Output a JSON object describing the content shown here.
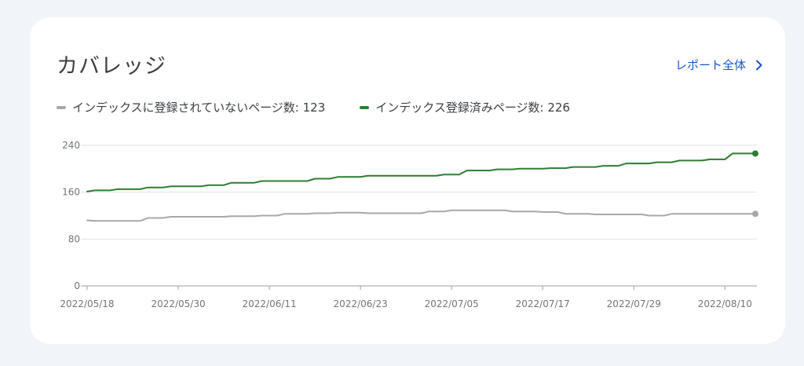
{
  "card": {
    "title": "カバレッジ",
    "report_link_label": "レポート全体"
  },
  "legend": [
    {
      "label": "インデックスに登録されていないページ数: 123",
      "color": "#a8a8a8"
    },
    {
      "label": "インデックス登録済みページ数: 226",
      "color": "#2e7d32"
    }
  ],
  "icons": {
    "report_link": "chevron-right-icon"
  },
  "chart_data": {
    "type": "line",
    "x_start": "2022/05/18",
    "x_end": "2022/08/14",
    "x_tick_labels": [
      "2022/05/18",
      "2022/05/30",
      "2022/06/11",
      "2022/06/23",
      "2022/07/05",
      "2022/07/17",
      "2022/07/29",
      "2022/08/10"
    ],
    "y_tick_labels": [
      "0",
      "80",
      "160",
      "240"
    ],
    "ylim": [
      0,
      240
    ],
    "grid": true,
    "legend_position": "top-left",
    "series": [
      {
        "name": "インデックス登録済みページ数",
        "color": "#2e7d32",
        "points": [
          [
            "2022/05/18",
            161
          ],
          [
            "2022/05/19",
            163
          ],
          [
            "2022/05/21",
            163
          ],
          [
            "2022/05/22",
            165
          ],
          [
            "2022/05/25",
            165
          ],
          [
            "2022/05/26",
            168
          ],
          [
            "2022/05/28",
            168
          ],
          [
            "2022/05/29",
            170
          ],
          [
            "2022/06/02",
            170
          ],
          [
            "2022/06/03",
            172
          ],
          [
            "2022/06/05",
            172
          ],
          [
            "2022/06/06",
            176
          ],
          [
            "2022/06/09",
            176
          ],
          [
            "2022/06/10",
            179
          ],
          [
            "2022/06/16",
            179
          ],
          [
            "2022/06/17",
            183
          ],
          [
            "2022/06/19",
            183
          ],
          [
            "2022/06/20",
            186
          ],
          [
            "2022/06/23",
            186
          ],
          [
            "2022/06/24",
            188
          ],
          [
            "2022/07/03",
            188
          ],
          [
            "2022/07/04",
            190
          ],
          [
            "2022/07/06",
            190
          ],
          [
            "2022/07/07",
            197
          ],
          [
            "2022/07/10",
            197
          ],
          [
            "2022/07/11",
            199
          ],
          [
            "2022/07/13",
            199
          ],
          [
            "2022/07/14",
            200
          ],
          [
            "2022/07/17",
            200
          ],
          [
            "2022/07/18",
            201
          ],
          [
            "2022/07/20",
            201
          ],
          [
            "2022/07/21",
            203
          ],
          [
            "2022/07/24",
            203
          ],
          [
            "2022/07/25",
            205
          ],
          [
            "2022/07/27",
            205
          ],
          [
            "2022/07/28",
            209
          ],
          [
            "2022/07/31",
            209
          ],
          [
            "2022/08/01",
            211
          ],
          [
            "2022/08/03",
            211
          ],
          [
            "2022/08/04",
            214
          ],
          [
            "2022/08/07",
            214
          ],
          [
            "2022/08/08",
            216
          ],
          [
            "2022/08/10",
            216
          ],
          [
            "2022/08/11",
            226
          ],
          [
            "2022/08/14",
            226
          ]
        ]
      },
      {
        "name": "インデックスに登録されていないページ数",
        "color": "#a8a8a8",
        "points": [
          [
            "2022/05/18",
            112
          ],
          [
            "2022/05/19",
            111
          ],
          [
            "2022/05/25",
            111
          ],
          [
            "2022/05/26",
            116
          ],
          [
            "2022/05/28",
            116
          ],
          [
            "2022/05/29",
            118
          ],
          [
            "2022/06/05",
            118
          ],
          [
            "2022/06/06",
            119
          ],
          [
            "2022/06/09",
            119
          ],
          [
            "2022/06/10",
            120
          ],
          [
            "2022/06/12",
            120
          ],
          [
            "2022/06/13",
            123
          ],
          [
            "2022/06/16",
            123
          ],
          [
            "2022/06/17",
            124
          ],
          [
            "2022/06/19",
            124
          ],
          [
            "2022/06/20",
            125
          ],
          [
            "2022/06/23",
            125
          ],
          [
            "2022/06/24",
            124
          ],
          [
            "2022/07/01",
            124
          ],
          [
            "2022/07/02",
            127
          ],
          [
            "2022/07/04",
            127
          ],
          [
            "2022/07/05",
            129
          ],
          [
            "2022/07/12",
            129
          ],
          [
            "2022/07/13",
            127
          ],
          [
            "2022/07/16",
            127
          ],
          [
            "2022/07/17",
            126
          ],
          [
            "2022/07/19",
            126
          ],
          [
            "2022/07/20",
            123
          ],
          [
            "2022/07/23",
            123
          ],
          [
            "2022/07/24",
            122
          ],
          [
            "2022/07/30",
            122
          ],
          [
            "2022/07/31",
            120
          ],
          [
            "2022/08/02",
            120
          ],
          [
            "2022/08/03",
            123
          ],
          [
            "2022/08/14",
            123
          ]
        ]
      }
    ]
  }
}
